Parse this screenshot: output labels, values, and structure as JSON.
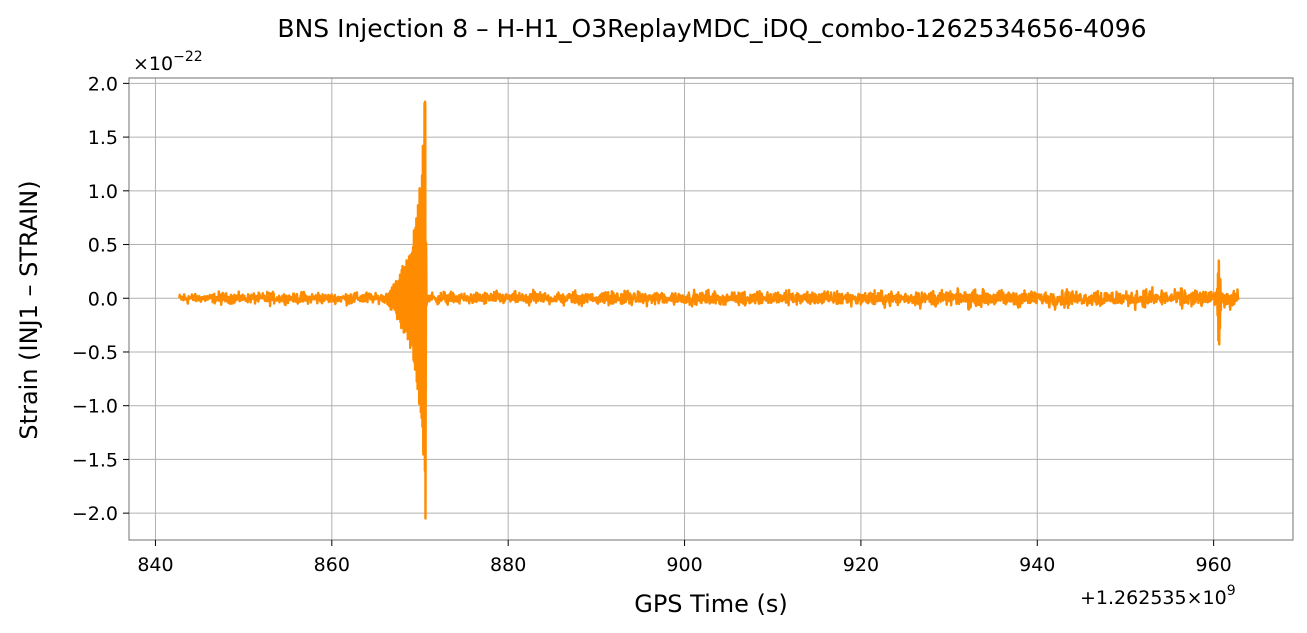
{
  "chart_data": {
    "type": "line",
    "title": "BNS Injection 8 – H-H1_O3ReplayMDC_iDQ_combo-1262534656-4096",
    "xlabel": "GPS Time (s)",
    "ylabel": "Strain (INJ1 – STRAIN)",
    "x_offset_label": "+1.262535×10",
    "x_offset_exp": "9",
    "y_scale_label": "×10",
    "y_scale_exp": "−22",
    "xlim": [
      837,
      969
    ],
    "ylim": [
      -2.25,
      2.05
    ],
    "xticks": [
      840,
      860,
      880,
      900,
      920,
      940,
      960
    ],
    "xtick_labels": [
      "840",
      "860",
      "880",
      "900",
      "920",
      "940",
      "960"
    ],
    "yticks": [
      -2.0,
      -1.5,
      -1.0,
      -0.5,
      0.0,
      0.5,
      1.0,
      1.5,
      2.0
    ],
    "ytick_labels": [
      "−2.0",
      "−1.5",
      "−1.0",
      "−0.5",
      "0.0",
      "0.5",
      "1.0",
      "1.5",
      "2.0"
    ],
    "grid": true,
    "series": [
      {
        "color": "#ff8c00",
        "x_range": [
          842.7,
          962.8
        ],
        "baseline_amplitude": 0.07,
        "noise_growth_end": 0.12,
        "chirp": {
          "start": 866.0,
          "peak_time": 870.6,
          "peak_max": 1.83,
          "peak_min": -2.05,
          "envelope_at_869": 0.82
        },
        "glitch": {
          "time": 960.6,
          "max": 0.33,
          "min": -0.43
        }
      }
    ]
  }
}
